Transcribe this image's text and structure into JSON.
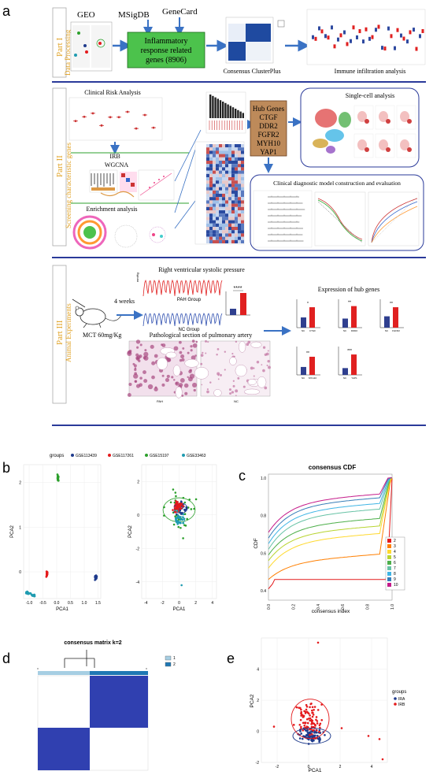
{
  "panel_labels": {
    "a": "a",
    "b": "b",
    "c": "c",
    "d": "d",
    "e": "e"
  },
  "part1": {
    "part_label": "Part I",
    "part_subtitle": "Data Processing",
    "geo": "GEO",
    "msigdb": "MSigDB",
    "genecard": "GeneCard",
    "inflam_lines": [
      "Inflammatory",
      "response related",
      "genes (8906)"
    ],
    "consensus": "Consensus ClusterPlus",
    "immune": "Immune infiltration analysis"
  },
  "part2": {
    "part_label": "Part II",
    "part_subtitle": "Screening characteristic genes",
    "clinical": "Clinical Risk Analysis",
    "irb": "IRB",
    "wgcna": "WGCNA",
    "enrichment": "Enrichment analysis",
    "hub_genes": [
      "Hub Genes",
      "CTGF",
      "DDR2",
      "FGFR2",
      "MYH10",
      "YAP1"
    ],
    "singlecell": "Single-cell analysis",
    "diagnostic": "Clinical diagnostic model construction and evaluation"
  },
  "part3": {
    "part_label": "Part III",
    "part_subtitle": "Animal Experiments",
    "rvsp": "Right ventricular systolic pressure",
    "pah_group": "PAH Group",
    "nc_group": "NC Group",
    "stars_rvsp": "****",
    "weeks": "4 weeks",
    "mct": "MCT 60mg/Kg",
    "pathological": "Pathological section of pulmonary artery",
    "pah": "PAH",
    "nc": "NC",
    "expression": "Expression of hub genes",
    "hub_bars": [
      {
        "gene": "CTGF",
        "stars": "*",
        "nc": 0.45,
        "pah": 0.9
      },
      {
        "gene": "DDR2",
        "stars": "**",
        "nc": 0.4,
        "pah": 0.95
      },
      {
        "gene": "FGFR2",
        "stars": "**",
        "nc": 0.5,
        "pah": 0.9
      },
      {
        "gene": "MYH10",
        "stars": "**",
        "nc": 0.35,
        "pah": 0.8
      },
      {
        "gene": "YAP1",
        "stars": "***",
        "nc": 0.3,
        "pah": 0.9
      }
    ],
    "colors": {
      "nc": "#2f3f8f",
      "pah": "#e02020"
    }
  },
  "chart_data": [
    {
      "id": "b",
      "type": "scatter",
      "legend_title": "groups",
      "legend": [
        "GSE113439",
        "GSE117261",
        "GSE15197",
        "GSE33463"
      ],
      "colors": [
        "#1f3b8c",
        "#e41a1c",
        "#2ca02c",
        "#1f9bb0"
      ],
      "left": {
        "xlabel": "PCA1",
        "ylabel": "PCA2",
        "xticks": [
          "-1.0",
          "-0.5",
          "0.0",
          "0.5",
          "1.0",
          "1.5"
        ],
        "yticks": [
          "0",
          "1",
          "2"
        ],
        "xlim": [
          -1.2,
          1.6
        ],
        "ylim": [
          -0.6,
          2.4
        ]
      },
      "right": {
        "xlabel": "PCA1",
        "ylabel": "PCA2",
        "xticks": [
          "-4",
          "-2",
          "0",
          "2",
          "4"
        ],
        "yticks": [
          "-4",
          "-2",
          "0",
          "2"
        ],
        "xlim": [
          -4.5,
          4.5
        ],
        "ylim": [
          -5,
          3
        ]
      }
    },
    {
      "id": "c",
      "type": "line",
      "title": "consensus CDF",
      "xlabel": "consensus index",
      "ylabel": "CDF",
      "xticks": [
        "0.0",
        "0.2",
        "0.4",
        "0.6",
        "0.8",
        "1.0"
      ],
      "yticks": [
        "0.4",
        "0.6",
        "0.8",
        "1.0"
      ],
      "xlim": [
        0,
        1
      ],
      "ylim": [
        0.35,
        1.02
      ],
      "series": [
        {
          "name": "2",
          "color": "#e41a1c"
        },
        {
          "name": "3",
          "color": "#ff7f00"
        },
        {
          "name": "4",
          "color": "#ffd92f"
        },
        {
          "name": "5",
          "color": "#b8d430"
        },
        {
          "name": "6",
          "color": "#4daf4a"
        },
        {
          "name": "7",
          "color": "#66c2a5"
        },
        {
          "name": "8",
          "color": "#3fb5e5"
        },
        {
          "name": "9",
          "color": "#377eb8"
        },
        {
          "name": "10",
          "color": "#c51b8a"
        }
      ]
    },
    {
      "id": "d",
      "type": "heatmap",
      "title": "consensus matrix k=2",
      "legend": [
        "1",
        "2"
      ],
      "colors": [
        "#a6cee3",
        "#1f78b4"
      ]
    },
    {
      "id": "e",
      "type": "scatter",
      "xlabel": "PCA1",
      "ylabel": "PCA2",
      "legend_title": "groups",
      "legend": [
        "IRA",
        "IRB"
      ],
      "colors": [
        "#1f3b8c",
        "#e41a1c"
      ],
      "xticks": [
        "-2",
        "0",
        "2",
        "4"
      ],
      "yticks": [
        "-2",
        "0",
        "2",
        "4"
      ],
      "xlim": [
        -3,
        5
      ],
      "ylim": [
        -2,
        6
      ]
    }
  ]
}
